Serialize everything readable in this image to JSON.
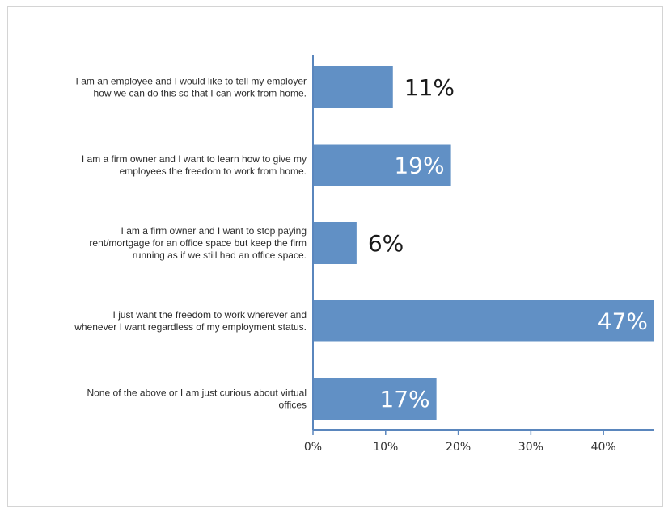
{
  "chart_data": {
    "type": "bar",
    "orientation": "horizontal",
    "title": "",
    "xlabel": "",
    "ylabel": "",
    "categories": [
      [
        "I am an employee and I would like to tell my employer",
        "how we can do this so that I can work from home."
      ],
      [
        "I am a firm owner and I want to learn how to give my",
        "employees the freedom to work from home."
      ],
      [
        "I am a firm owner and I want to stop paying",
        "rent/mortgage for an office space but keep the firm",
        "running as if we still had an office space."
      ],
      [
        "I just want the freedom to work wherever and",
        "whenever I want regardless of my employment status."
      ],
      [
        "None of the above or I am just curious about virtual",
        "offices"
      ]
    ],
    "values": [
      11,
      19,
      6,
      47,
      17
    ],
    "data_labels": [
      "11%",
      "19%",
      "6%",
      "47%",
      "17%"
    ],
    "xlim": [
      0,
      47
    ],
    "x_ticks": [
      0,
      10,
      20,
      30,
      40
    ],
    "x_tick_labels": [
      "0%",
      "10%",
      "20%",
      "30%",
      "40%"
    ],
    "grid": false,
    "legend": "none",
    "bar_color": "#6190c5",
    "axis_color": "#5a86bd",
    "label_inside_color": "#ffffff",
    "label_outside_color": "#1a1a1a"
  }
}
